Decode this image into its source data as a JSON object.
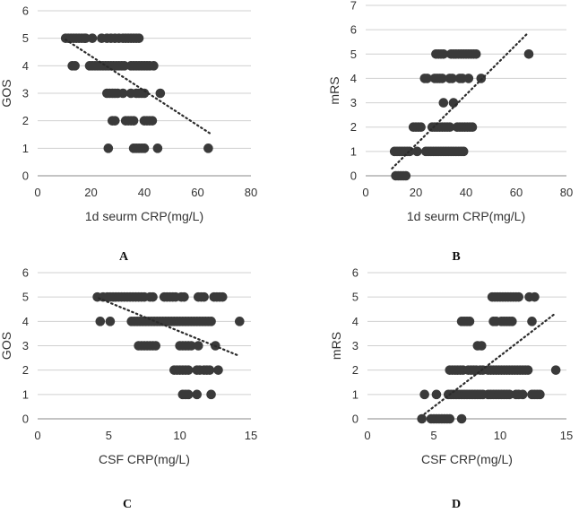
{
  "chart_data": [
    {
      "type": "scatter",
      "panel": "A",
      "xlabel": "1d seurm CRP(mg/L)",
      "ylabel": "GOS",
      "xlim": [
        0,
        80
      ],
      "ylim": [
        0,
        6
      ],
      "xticks": [
        0,
        20,
        40,
        60,
        80
      ],
      "yticks": [
        0,
        1,
        2,
        3,
        4,
        5,
        6
      ],
      "grid": "horizontal",
      "points": [
        [
          10.5,
          5
        ],
        [
          11.5,
          5
        ],
        [
          12.5,
          5
        ],
        [
          13.5,
          5
        ],
        [
          14.5,
          5
        ],
        [
          15.5,
          5
        ],
        [
          16.5,
          5
        ],
        [
          17.5,
          5
        ],
        [
          18,
          5
        ],
        [
          20.5,
          5
        ],
        [
          24,
          5
        ],
        [
          26,
          5
        ],
        [
          27.5,
          5
        ],
        [
          29,
          5
        ],
        [
          30.5,
          5
        ],
        [
          32,
          5
        ],
        [
          33,
          5
        ],
        [
          34,
          5
        ],
        [
          35,
          5
        ],
        [
          36,
          5
        ],
        [
          37,
          5
        ],
        [
          38,
          5
        ],
        [
          13,
          4
        ],
        [
          14,
          4
        ],
        [
          19.5,
          4
        ],
        [
          20.5,
          4
        ],
        [
          21.5,
          4
        ],
        [
          22.5,
          4
        ],
        [
          23.5,
          4
        ],
        [
          24.5,
          4
        ],
        [
          25.5,
          4
        ],
        [
          26.5,
          4
        ],
        [
          27.5,
          4
        ],
        [
          28.5,
          4
        ],
        [
          29.5,
          4
        ],
        [
          30.5,
          4
        ],
        [
          31.5,
          4
        ],
        [
          32.5,
          4
        ],
        [
          35,
          4
        ],
        [
          36,
          4
        ],
        [
          37,
          4
        ],
        [
          38,
          4
        ],
        [
          39,
          4
        ],
        [
          40,
          4
        ],
        [
          41,
          4
        ],
        [
          42,
          4
        ],
        [
          43.5,
          4
        ],
        [
          26,
          3
        ],
        [
          27,
          3
        ],
        [
          28,
          3
        ],
        [
          29,
          3
        ],
        [
          30,
          3
        ],
        [
          32,
          3
        ],
        [
          35,
          3
        ],
        [
          37,
          3
        ],
        [
          38,
          3
        ],
        [
          39,
          3
        ],
        [
          40,
          3
        ],
        [
          46,
          3
        ],
        [
          28,
          2
        ],
        [
          29,
          2
        ],
        [
          33,
          2
        ],
        [
          34,
          2
        ],
        [
          35,
          2
        ],
        [
          36,
          2
        ],
        [
          40,
          2
        ],
        [
          41,
          2
        ],
        [
          42,
          2
        ],
        [
          43,
          2
        ],
        [
          26.5,
          1
        ],
        [
          36,
          1
        ],
        [
          37,
          1
        ],
        [
          38,
          1
        ],
        [
          39,
          1
        ],
        [
          40,
          1
        ],
        [
          45,
          1
        ],
        [
          64,
          1
        ]
      ],
      "trendline": [
        [
          10.5,
          4.95
        ],
        [
          64.5,
          1.55
        ]
      ]
    },
    {
      "type": "scatter",
      "panel": "B",
      "xlabel": "1d seurm CRP(mg/L)",
      "ylabel": "mRS",
      "xlim": [
        0,
        80
      ],
      "ylim": [
        0,
        7
      ],
      "xticks": [
        0,
        20,
        40,
        60,
        80
      ],
      "yticks": [
        0,
        1,
        2,
        3,
        4,
        5,
        6,
        7
      ],
      "grid": "horizontal",
      "points": [
        [
          28,
          5
        ],
        [
          29,
          5
        ],
        [
          30,
          5
        ],
        [
          31,
          5
        ],
        [
          34,
          5
        ],
        [
          35,
          5
        ],
        [
          36,
          5
        ],
        [
          37,
          5
        ],
        [
          38,
          5
        ],
        [
          39,
          5
        ],
        [
          40,
          5
        ],
        [
          41,
          5
        ],
        [
          42,
          5
        ],
        [
          43,
          5
        ],
        [
          44,
          5
        ],
        [
          65,
          5
        ],
        [
          23.5,
          4
        ],
        [
          24.5,
          4
        ],
        [
          27.5,
          4
        ],
        [
          28.5,
          4
        ],
        [
          29.5,
          4
        ],
        [
          30.5,
          4
        ],
        [
          33.5,
          4
        ],
        [
          34.5,
          4
        ],
        [
          37.5,
          4
        ],
        [
          38.5,
          4
        ],
        [
          41,
          4
        ],
        [
          46,
          4
        ],
        [
          31,
          3
        ],
        [
          35,
          3
        ],
        [
          19,
          2
        ],
        [
          20,
          2
        ],
        [
          21,
          2
        ],
        [
          22,
          2
        ],
        [
          26.5,
          2
        ],
        [
          27.5,
          2
        ],
        [
          28.5,
          2
        ],
        [
          29.5,
          2
        ],
        [
          30.5,
          2
        ],
        [
          31.5,
          2
        ],
        [
          32.5,
          2
        ],
        [
          33.5,
          2
        ],
        [
          36.5,
          2
        ],
        [
          37.5,
          2
        ],
        [
          38.5,
          2
        ],
        [
          39.5,
          2
        ],
        [
          40.5,
          2
        ],
        [
          41.5,
          2
        ],
        [
          42.5,
          2
        ],
        [
          11.5,
          1
        ],
        [
          12.5,
          1
        ],
        [
          13.5,
          1
        ],
        [
          14.5,
          1
        ],
        [
          15.5,
          1
        ],
        [
          16.5,
          1
        ],
        [
          17.5,
          1
        ],
        [
          20.5,
          1
        ],
        [
          24,
          1
        ],
        [
          25,
          1
        ],
        [
          26,
          1
        ],
        [
          27,
          1
        ],
        [
          28,
          1
        ],
        [
          29,
          1
        ],
        [
          30,
          1
        ],
        [
          31,
          1
        ],
        [
          32,
          1
        ],
        [
          33,
          1
        ],
        [
          34,
          1
        ],
        [
          35,
          1
        ],
        [
          36,
          1
        ],
        [
          37,
          1
        ],
        [
          38,
          1
        ],
        [
          39,
          1
        ],
        [
          12,
          0
        ],
        [
          13,
          0
        ],
        [
          14,
          0
        ],
        [
          15,
          0
        ],
        [
          16,
          0
        ]
      ],
      "trendline": [
        [
          10.5,
          0.3
        ],
        [
          64.5,
          5.85
        ]
      ]
    },
    {
      "type": "scatter",
      "panel": "C",
      "xlabel": "CSF CRP(mg/L)",
      "ylabel": "GOS",
      "xlim": [
        0,
        15
      ],
      "ylim": [
        0,
        6
      ],
      "xticks": [
        0,
        5,
        10,
        15
      ],
      "yticks": [
        0,
        1,
        2,
        3,
        4,
        5,
        6
      ],
      "grid": "horizontal",
      "points": [
        [
          4.2,
          5
        ],
        [
          4.6,
          5
        ],
        [
          4.9,
          5
        ],
        [
          5.1,
          5
        ],
        [
          5.3,
          5
        ],
        [
          5.5,
          5
        ],
        [
          5.7,
          5
        ],
        [
          5.9,
          5
        ],
        [
          6.1,
          5
        ],
        [
          6.3,
          5
        ],
        [
          6.5,
          5
        ],
        [
          6.7,
          5
        ],
        [
          6.9,
          5
        ],
        [
          7.1,
          5
        ],
        [
          7.3,
          5
        ],
        [
          7.5,
          5
        ],
        [
          7.9,
          5
        ],
        [
          8.1,
          5
        ],
        [
          8.9,
          5
        ],
        [
          9.1,
          5
        ],
        [
          9.3,
          5
        ],
        [
          9.5,
          5
        ],
        [
          9.7,
          5
        ],
        [
          10.1,
          5
        ],
        [
          10.3,
          5
        ],
        [
          11.3,
          5
        ],
        [
          11.5,
          5
        ],
        [
          11.7,
          5
        ],
        [
          12.4,
          5
        ],
        [
          12.6,
          5
        ],
        [
          12.8,
          5
        ],
        [
          13,
          5
        ],
        [
          4.4,
          4
        ],
        [
          5.1,
          4
        ],
        [
          6.6,
          4
        ],
        [
          6.8,
          4
        ],
        [
          7.0,
          4
        ],
        [
          7.2,
          4
        ],
        [
          7.4,
          4
        ],
        [
          7.6,
          4
        ],
        [
          7.8,
          4
        ],
        [
          8.0,
          4
        ],
        [
          8.2,
          4
        ],
        [
          8.4,
          4
        ],
        [
          8.6,
          4
        ],
        [
          8.8,
          4
        ],
        [
          9.0,
          4
        ],
        [
          9.2,
          4
        ],
        [
          9.4,
          4
        ],
        [
          9.6,
          4
        ],
        [
          9.8,
          4
        ],
        [
          10.0,
          4
        ],
        [
          10.2,
          4
        ],
        [
          10.4,
          4
        ],
        [
          10.6,
          4
        ],
        [
          10.8,
          4
        ],
        [
          11.0,
          4
        ],
        [
          11.2,
          4
        ],
        [
          11.4,
          4
        ],
        [
          11.6,
          4
        ],
        [
          11.8,
          4
        ],
        [
          12.0,
          4
        ],
        [
          12.2,
          4
        ],
        [
          14.2,
          4
        ],
        [
          7.1,
          3
        ],
        [
          7.3,
          3
        ],
        [
          7.5,
          3
        ],
        [
          7.7,
          3
        ],
        [
          7.9,
          3
        ],
        [
          8.1,
          3
        ],
        [
          8.3,
          3
        ],
        [
          10.0,
          3
        ],
        [
          10.2,
          3
        ],
        [
          10.4,
          3
        ],
        [
          10.6,
          3
        ],
        [
          10.8,
          3
        ],
        [
          11.3,
          3
        ],
        [
          12.5,
          3
        ],
        [
          9.6,
          2
        ],
        [
          9.8,
          2
        ],
        [
          10.0,
          2
        ],
        [
          10.2,
          2
        ],
        [
          10.4,
          2
        ],
        [
          10.6,
          2
        ],
        [
          11.2,
          2
        ],
        [
          11.4,
          2
        ],
        [
          11.7,
          2
        ],
        [
          11.9,
          2
        ],
        [
          12.1,
          2
        ],
        [
          12.7,
          2
        ],
        [
          10.2,
          1
        ],
        [
          10.4,
          1
        ],
        [
          10.6,
          1
        ],
        [
          11.2,
          1
        ],
        [
          12.2,
          1
        ]
      ],
      "trendline": [
        [
          4.3,
          4.95
        ],
        [
          14.1,
          2.6
        ]
      ]
    },
    {
      "type": "scatter",
      "panel": "D",
      "xlabel": "CSF CRP(mg/L)",
      "ylabel": "mRS",
      "xlim": [
        0,
        15
      ],
      "ylim": [
        0,
        6
      ],
      "xticks": [
        0,
        5,
        10,
        15
      ],
      "yticks": [
        0,
        1,
        2,
        3,
        4,
        5,
        6
      ],
      "grid": "horizontal",
      "points": [
        [
          9.4,
          5
        ],
        [
          9.6,
          5
        ],
        [
          9.8,
          5
        ],
        [
          10.0,
          5
        ],
        [
          10.2,
          5
        ],
        [
          10.4,
          5
        ],
        [
          10.6,
          5
        ],
        [
          10.8,
          5
        ],
        [
          11.0,
          5
        ],
        [
          11.2,
          5
        ],
        [
          11.4,
          5
        ],
        [
          12.2,
          5
        ],
        [
          12.6,
          5
        ],
        [
          7.1,
          4
        ],
        [
          7.3,
          4
        ],
        [
          7.5,
          4
        ],
        [
          7.7,
          4
        ],
        [
          9.5,
          4
        ],
        [
          9.7,
          4
        ],
        [
          10.1,
          4
        ],
        [
          10.3,
          4
        ],
        [
          10.5,
          4
        ],
        [
          10.7,
          4
        ],
        [
          10.9,
          4
        ],
        [
          12.4,
          4
        ],
        [
          8.3,
          3
        ],
        [
          8.6,
          3
        ],
        [
          6.2,
          2
        ],
        [
          6.4,
          2
        ],
        [
          6.6,
          2
        ],
        [
          6.8,
          2
        ],
        [
          7.0,
          2
        ],
        [
          7.2,
          2
        ],
        [
          7.6,
          2
        ],
        [
          7.8,
          2
        ],
        [
          8.0,
          2
        ],
        [
          8.2,
          2
        ],
        [
          8.5,
          2
        ],
        [
          8.7,
          2
        ],
        [
          9.1,
          2
        ],
        [
          9.3,
          2
        ],
        [
          9.5,
          2
        ],
        [
          9.7,
          2
        ],
        [
          9.9,
          2
        ],
        [
          10.1,
          2
        ],
        [
          10.3,
          2
        ],
        [
          10.5,
          2
        ],
        [
          10.7,
          2
        ],
        [
          10.9,
          2
        ],
        [
          11.1,
          2
        ],
        [
          11.3,
          2
        ],
        [
          11.5,
          2
        ],
        [
          11.7,
          2
        ],
        [
          11.9,
          2
        ],
        [
          12.1,
          2
        ],
        [
          14.2,
          2
        ],
        [
          4.3,
          1
        ],
        [
          5.2,
          1
        ],
        [
          6.1,
          1
        ],
        [
          6.3,
          1
        ],
        [
          6.5,
          1
        ],
        [
          6.7,
          1
        ],
        [
          6.9,
          1
        ],
        [
          7.1,
          1
        ],
        [
          7.3,
          1
        ],
        [
          7.5,
          1
        ],
        [
          7.7,
          1
        ],
        [
          7.9,
          1
        ],
        [
          8.1,
          1
        ],
        [
          8.3,
          1
        ],
        [
          8.5,
          1
        ],
        [
          8.7,
          1
        ],
        [
          9.1,
          1
        ],
        [
          9.3,
          1
        ],
        [
          9.5,
          1
        ],
        [
          9.7,
          1
        ],
        [
          9.9,
          1
        ],
        [
          10.1,
          1
        ],
        [
          10.3,
          1
        ],
        [
          10.5,
          1
        ],
        [
          10.7,
          1
        ],
        [
          11.2,
          1
        ],
        [
          11.4,
          1
        ],
        [
          11.7,
          1
        ],
        [
          12.4,
          1
        ],
        [
          12.6,
          1
        ],
        [
          12.8,
          1
        ],
        [
          13.0,
          1
        ],
        [
          4.1,
          0
        ],
        [
          4.8,
          0
        ],
        [
          5.0,
          0
        ],
        [
          5.2,
          0
        ],
        [
          5.4,
          0
        ],
        [
          5.6,
          0
        ],
        [
          5.8,
          0
        ],
        [
          6.0,
          0
        ],
        [
          6.2,
          0
        ],
        [
          7.1,
          0
        ]
      ],
      "trendline": [
        [
          4.3,
          0.2
        ],
        [
          14.1,
          4.3
        ]
      ]
    }
  ]
}
